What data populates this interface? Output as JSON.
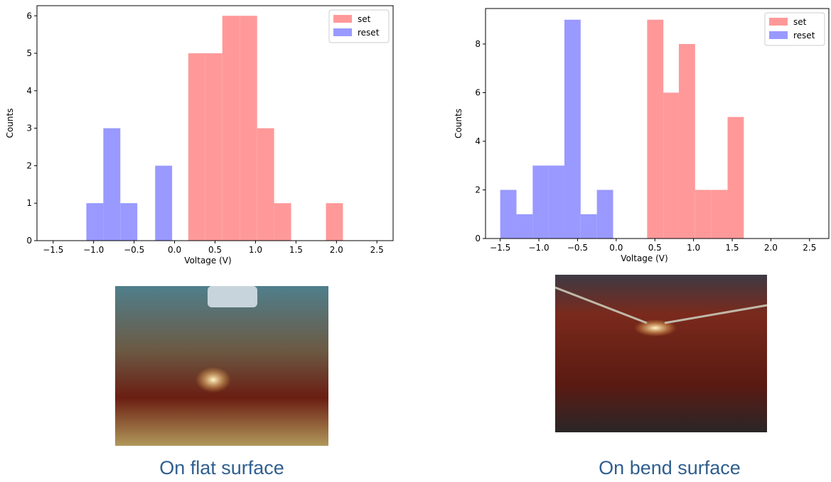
{
  "chart_data": [
    {
      "type": "histogram",
      "xlabel": "Voltage (V)",
      "ylabel": "Counts",
      "caption": "On flat surface",
      "legend": "upper right",
      "xlim": [
        -1.7,
        2.7
      ],
      "ylim": [
        0,
        6.27
      ],
      "xticks": [
        {
          "value": -1.5,
          "label": "−1.5"
        },
        {
          "value": -1.0,
          "label": "−1.0"
        },
        {
          "value": -0.5,
          "label": "−0.5"
        },
        {
          "value": 0,
          "label": "0.0"
        },
        0.5,
        {
          "value": 1,
          "label": "1.0"
        },
        1.5,
        {
          "value": 2,
          "label": "2.0"
        },
        2.5
      ],
      "yticks": [
        0,
        1,
        2,
        3,
        4,
        5,
        6
      ],
      "series": [
        {
          "name": "set",
          "color": "#ff9999",
          "bins": [
            0.17,
            0.38,
            0.59,
            0.81,
            1.02,
            1.23,
            1.44,
            1.65,
            1.87,
            2.08
          ],
          "values": [
            5,
            5,
            6,
            6,
            3,
            1,
            0,
            0,
            1
          ]
        },
        {
          "name": "reset",
          "color": "#9999ff",
          "bins": [
            -1.09,
            -0.88,
            -0.67,
            -0.46,
            -0.24,
            -0.03
          ],
          "values": [
            1,
            3,
            1,
            0,
            2
          ]
        }
      ]
    },
    {
      "type": "histogram",
      "xlabel": "Voltage (V)",
      "ylabel": "Counts",
      "caption": "On bend surface",
      "legend": "upper right",
      "xlim": [
        -1.69,
        2.75
      ],
      "ylim": [
        0,
        9.46
      ],
      "xticks": [
        {
          "value": -1.5,
          "label": "−1.5"
        },
        {
          "value": -1.0,
          "label": "−1.0"
        },
        {
          "value": -0.5,
          "label": "−0.5"
        },
        {
          "value": 0,
          "label": "0.0"
        },
        0.5,
        {
          "value": 1,
          "label": "1.0"
        },
        1.5,
        {
          "value": 2,
          "label": "2.0"
        },
        2.5
      ],
      "yticks": [
        0,
        2,
        4,
        6,
        8
      ],
      "series": [
        {
          "name": "set",
          "color": "#ff9999",
          "bins": [
            0.4,
            0.61,
            0.81,
            1.02,
            1.23,
            1.44,
            1.65
          ],
          "values": [
            9,
            6,
            8,
            2,
            2,
            5
          ]
        },
        {
          "name": "reset",
          "color": "#9999ff",
          "bins": [
            -1.5,
            -1.29,
            -1.08,
            -0.88,
            -0.67,
            -0.46,
            -0.25,
            -0.04
          ],
          "values": [
            2,
            1,
            3,
            3,
            9,
            1,
            2
          ]
        }
      ]
    }
  ]
}
